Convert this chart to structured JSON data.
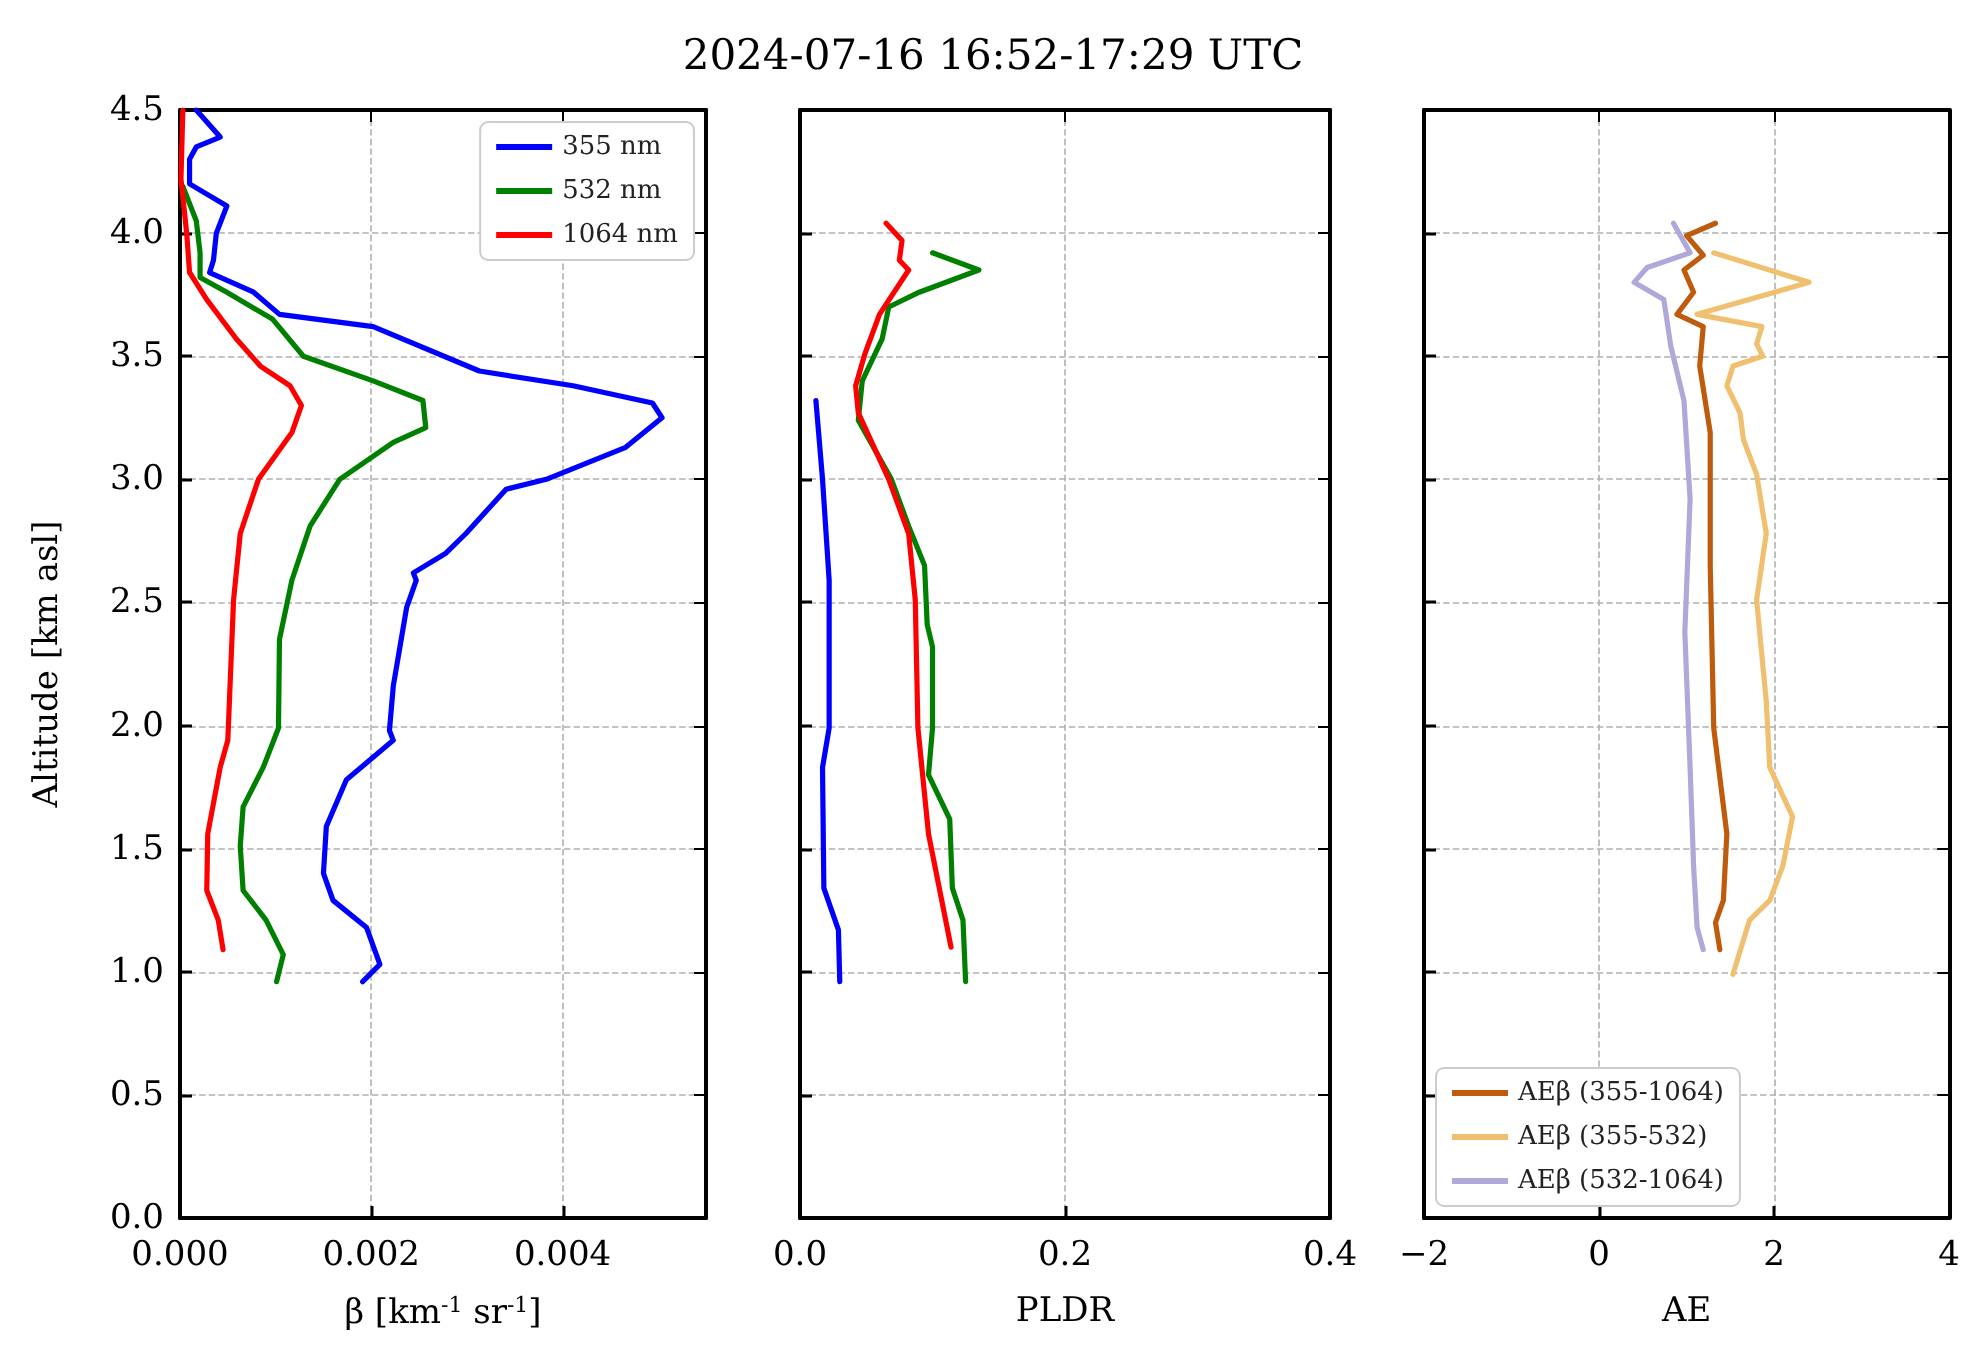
{
  "chart_data": [
    {
      "type": "line",
      "xlabel": "β [km$^{-1}$ sr$^{-1}$]",
      "ylabel": "Altitude [km asl]",
      "xlim": [
        0,
        0.0055
      ],
      "ylim": [
        0,
        4.5
      ],
      "xticks": [
        {
          "value": 0,
          "label": "0.000"
        },
        {
          "value": 0.002,
          "label": "0.002"
        },
        {
          "value": 0.004,
          "label": "0.004"
        }
      ],
      "yticks": [
        {
          "value": 0,
          "label": "0.0"
        },
        {
          "value": 0.5,
          "label": "0.5"
        },
        {
          "value": 1,
          "label": "1.0"
        },
        {
          "value": 1.5,
          "label": "1.5"
        },
        {
          "value": 2,
          "label": "2.0"
        },
        {
          "value": 2.5,
          "label": "2.5"
        },
        {
          "value": 3,
          "label": "3.0"
        },
        {
          "value": 3.5,
          "label": "3.5"
        },
        {
          "value": 4,
          "label": "4.0"
        },
        {
          "value": 4.5,
          "label": "4.5"
        }
      ],
      "grid": true,
      "legend": "top right",
      "series": [
        {
          "name": "355 nm",
          "color": "#0000ff",
          "x": [
            0.00017,
            0.00042,
            0.00017,
            0.0001,
            0.0001,
            0.00049,
            0.00038,
            0.00035,
            0.00031,
            0.00077,
            0.00104,
            0.00202,
            0.00313,
            0.00411,
            0.00494,
            0.00504,
            0.00466,
            0.00383,
            0.00341,
            0.00299,
            0.00278,
            0.00244,
            0.00247,
            0.00237,
            0.0023,
            0.00223,
            0.00219,
            0.00223,
            0.00174,
            0.00153,
            0.0015,
            0.0016,
            0.00195,
            0.00209,
            0.00191
          ],
          "values": [
            4.5,
            4.39,
            4.35,
            4.3,
            4.2,
            4.11,
            4.0,
            3.89,
            3.84,
            3.76,
            3.67,
            3.62,
            3.44,
            3.38,
            3.31,
            3.25,
            3.13,
            3.0,
            2.96,
            2.78,
            2.7,
            2.62,
            2.59,
            2.48,
            2.32,
            2.16,
            1.98,
            1.94,
            1.78,
            1.59,
            1.4,
            1.29,
            1.18,
            1.03,
            0.96
          ]
        },
        {
          "name": "532 nm",
          "color": "#008000",
          "x": [
            3e-05,
            0.00017,
            0.00021,
            0.00021,
            0.00049,
            0.00097,
            0.00129,
            0.00202,
            0.00254,
            0.00257,
            0.00223,
            0.00167,
            0.00136,
            0.00117,
            0.00104,
            0.00103,
            0.00087,
            0.00066,
            0.00063,
            0.00066,
            0.0009,
            0.00108,
            0.00101
          ],
          "values": [
            4.19,
            4.05,
            3.92,
            3.82,
            3.76,
            3.65,
            3.5,
            3.4,
            3.32,
            3.21,
            3.15,
            3.0,
            2.81,
            2.59,
            2.35,
            1.99,
            1.83,
            1.67,
            1.51,
            1.33,
            1.21,
            1.07,
            0.96
          ]
        },
        {
          "name": "1064 nm",
          "color": "#ff0000",
          "x": [
            3e-05,
            1e-05,
            7e-05,
            0.0001,
            0.00028,
            0.00059,
            0.00084,
            0.00115,
            0.00127,
            0.00117,
            0.00082,
            0.00063,
            0.00056,
            0.0005,
            0.00042,
            0.00029,
            0.00028,
            0.0004,
            0.00045
          ],
          "values": [
            4.5,
            4.22,
            4.0,
            3.84,
            3.73,
            3.57,
            3.46,
            3.38,
            3.3,
            3.19,
            3.0,
            2.78,
            2.51,
            1.94,
            1.83,
            1.56,
            1.33,
            1.21,
            1.09
          ]
        }
      ]
    },
    {
      "type": "line",
      "title": "2024-07-16 16:52-17:29 UTC",
      "xlabel": "PLDR",
      "xlim": [
        0,
        0.4
      ],
      "ylim": [
        0,
        4.5
      ],
      "xticks": [
        {
          "value": 0,
          "label": "0.0"
        },
        {
          "value": 0.2,
          "label": "0.2"
        },
        {
          "value": 0.4,
          "label": "0.4"
        }
      ],
      "yticks": [
        0,
        0.5,
        1,
        1.5,
        2,
        2.5,
        3,
        3.5,
        4,
        4.5
      ],
      "grid": true,
      "tick_labels": "x",
      "series": [
        {
          "color": "#0000ff",
          "x": [
            0.012,
            0.017,
            0.022,
            0.022,
            0.017,
            0.018,
            0.029,
            0.03
          ],
          "values": [
            3.32,
            3.0,
            2.59,
            1.99,
            1.83,
            1.34,
            1.17,
            0.96
          ]
        },
        {
          "color": "#008000",
          "x": [
            0.1,
            0.135,
            0.09,
            0.067,
            0.062,
            0.047,
            0.044,
            0.069,
            0.082,
            0.094,
            0.096,
            0.1,
            0.1,
            0.097,
            0.113,
            0.115,
            0.123,
            0.125
          ],
          "values": [
            3.92,
            3.85,
            3.76,
            3.7,
            3.57,
            3.4,
            3.24,
            3.0,
            2.81,
            2.65,
            2.41,
            2.32,
            1.99,
            1.8,
            1.62,
            1.34,
            1.21,
            0.96
          ]
        },
        {
          "color": "#ff0000",
          "x": [
            0.065,
            0.077,
            0.075,
            0.082,
            0.06,
            0.049,
            0.042,
            0.044,
            0.067,
            0.082,
            0.087,
            0.089,
            0.097,
            0.114
          ],
          "values": [
            4.04,
            3.97,
            3.89,
            3.85,
            3.67,
            3.51,
            3.38,
            3.27,
            3.0,
            2.78,
            2.51,
            1.99,
            1.56,
            1.1
          ]
        }
      ]
    },
    {
      "type": "line",
      "xlabel": "AE",
      "xlim": [
        -2,
        4
      ],
      "ylim": [
        0,
        4.5
      ],
      "xticks": [
        {
          "value": -2,
          "label": "−2"
        },
        0,
        2,
        4
      ],
      "yticks": [
        0,
        0.5,
        1,
        1.5,
        2,
        2.5,
        3,
        3.5,
        4,
        4.5
      ],
      "grid": true,
      "tick_labels": "x",
      "legend": "bottom left",
      "series": [
        {
          "name": "AEβ (355-1064)",
          "color": "#bf5b0d",
          "x": [
            1.33,
            1.0,
            1.19,
            0.97,
            1.08,
            0.89,
            1.19,
            1.15,
            1.27,
            1.27,
            1.31,
            1.46,
            1.42,
            1.33,
            1.38
          ],
          "values": [
            4.04,
            3.99,
            3.91,
            3.85,
            3.76,
            3.67,
            3.62,
            3.46,
            3.19,
            2.65,
            1.99,
            1.56,
            1.29,
            1.2,
            1.09
          ]
        },
        {
          "name": "AEβ (355-532)",
          "color": "#f0c070",
          "x": [
            1.31,
            2.4,
            1.12,
            1.86,
            1.8,
            1.87,
            1.53,
            1.46,
            1.61,
            1.65,
            1.8,
            1.91,
            1.8,
            1.91,
            1.95,
            2.21,
            2.1,
            1.95,
            1.72,
            1.53
          ],
          "values": [
            3.92,
            3.8,
            3.67,
            3.62,
            3.55,
            3.5,
            3.46,
            3.38,
            3.27,
            3.16,
            3.02,
            2.78,
            2.51,
            2.1,
            1.83,
            1.63,
            1.43,
            1.29,
            1.21,
            0.99
          ]
        },
        {
          "name": "AEβ (532-1064)",
          "color": "#b0a8d8",
          "x": [
            0.85,
            1.04,
            0.55,
            0.4,
            0.74,
            0.82,
            0.97,
            1.04,
            0.98,
            1.04,
            1.08,
            1.12,
            1.19
          ],
          "values": [
            4.04,
            3.92,
            3.86,
            3.8,
            3.73,
            3.54,
            3.32,
            2.92,
            2.38,
            1.83,
            1.43,
            1.18,
            1.09
          ]
        }
      ]
    }
  ]
}
